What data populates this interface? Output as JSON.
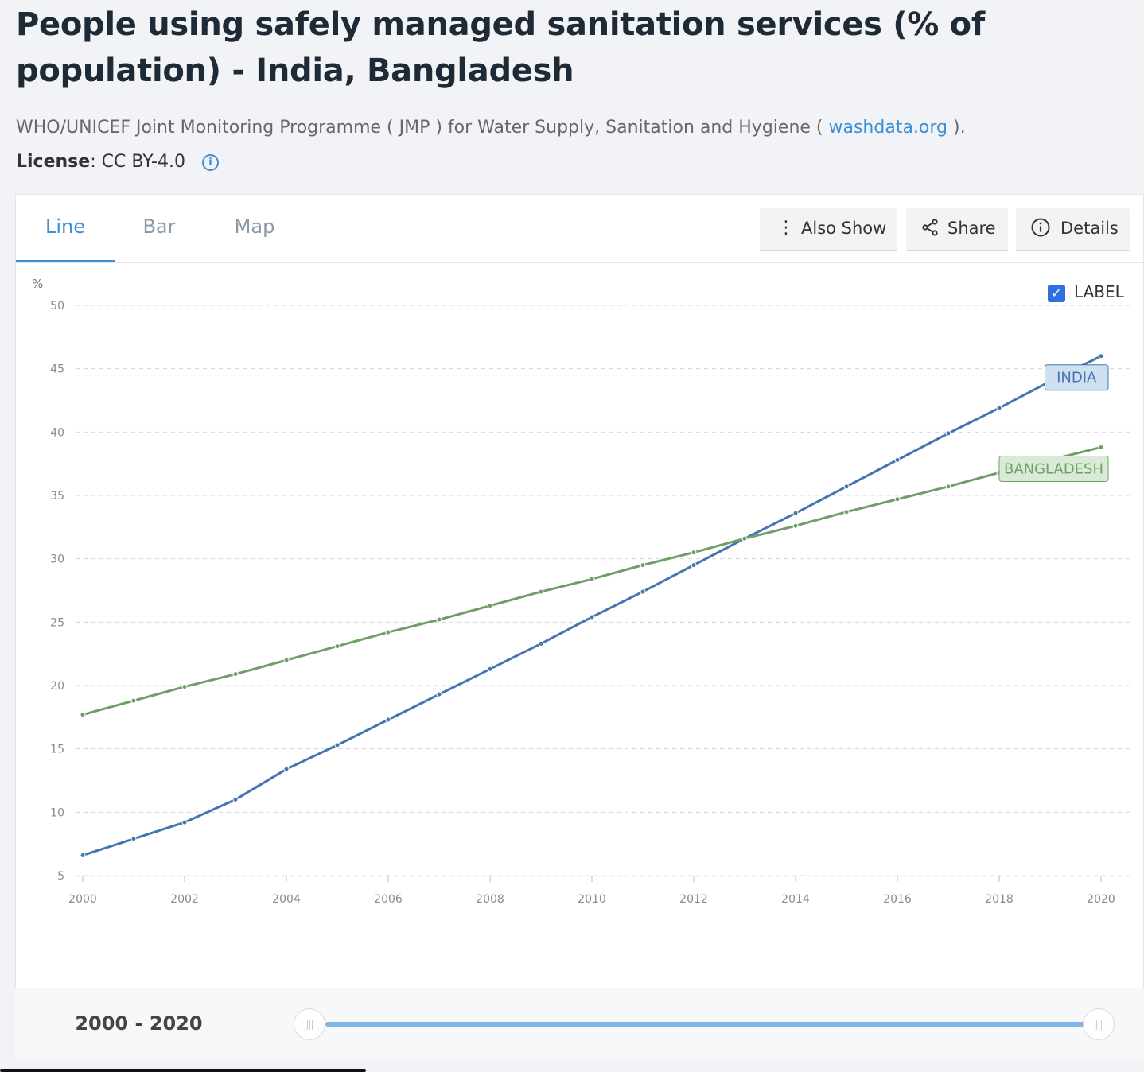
{
  "title": "People using safely managed sanitation services (% of population) - India, Bangladesh",
  "source": {
    "prefix": "WHO/UNICEF Joint Monitoring Programme ( JMP ) for Water Supply, Sanitation and Hygiene (",
    "link": "washdata.org",
    "suffix": ")."
  },
  "license": {
    "label": "License",
    "value": ": CC BY-4.0",
    "icon": "info-icon"
  },
  "tabs": [
    {
      "label": "Line",
      "active": true
    },
    {
      "label": "Bar",
      "active": false
    },
    {
      "label": "Map",
      "active": false
    }
  ],
  "toolbar": {
    "also_show": {
      "label": "Also Show",
      "icon": "vertical-dots-icon"
    },
    "share": {
      "label": "Share",
      "icon": "share-icon"
    },
    "details": {
      "label": "Details",
      "icon": "info-icon"
    }
  },
  "label_toggle": {
    "label": "LABEL",
    "checked": true
  },
  "footer": {
    "range_text": "2000 - 2020"
  },
  "colors": {
    "accent": "#3d8fd6",
    "india": "#4575b0",
    "bangladesh": "#6ea066"
  },
  "chart_data": {
    "type": "line",
    "ylabel": "%",
    "ylim": [
      5,
      50
    ],
    "yticks": [
      5,
      10,
      15,
      20,
      25,
      30,
      35,
      40,
      45,
      50
    ],
    "xlim": [
      2000,
      2020
    ],
    "xticks": [
      2000,
      2002,
      2004,
      2006,
      2008,
      2010,
      2012,
      2014,
      2016,
      2018,
      2020
    ],
    "grid": true,
    "x": [
      2000,
      2001,
      2002,
      2003,
      2004,
      2005,
      2006,
      2007,
      2008,
      2009,
      2010,
      2011,
      2012,
      2013,
      2014,
      2015,
      2016,
      2017,
      2018,
      2019,
      2020
    ],
    "series": [
      {
        "name": "INDIA",
        "color": "#4575b0",
        "values": [
          6.6,
          7.9,
          9.2,
          11.0,
          13.4,
          15.3,
          17.3,
          19.3,
          21.3,
          23.3,
          25.4,
          27.4,
          29.5,
          31.6,
          33.6,
          35.7,
          37.8,
          39.9,
          41.9,
          44.0,
          46.0
        ]
      },
      {
        "name": "BANGLADESH",
        "color": "#6ea066",
        "values": [
          17.7,
          18.8,
          19.9,
          20.9,
          22.0,
          23.1,
          24.2,
          25.2,
          26.3,
          27.4,
          28.4,
          29.5,
          30.5,
          31.6,
          32.6,
          33.7,
          34.7,
          35.7,
          36.8,
          37.8,
          38.8
        ]
      }
    ]
  }
}
